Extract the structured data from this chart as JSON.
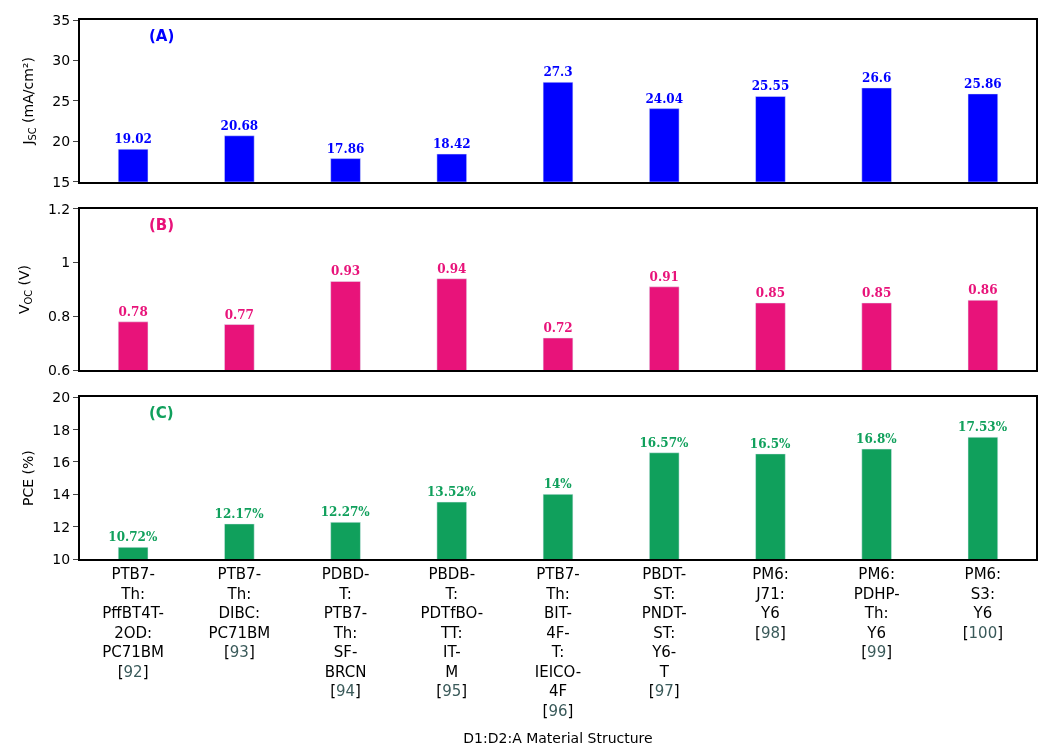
{
  "chart_data": [
    {
      "type": "bar",
      "series": [
        {
          "color": "#0000ff",
          "values": [
            19.02,
            20.68,
            17.86,
            18.42,
            27.3,
            24.04,
            25.55,
            26.6,
            25.86
          ]
        }
      ],
      "ylabel": "J$_{SC}$ (mA/cm²)",
      "ylim": [
        15,
        35
      ],
      "yticks": [
        15,
        20,
        25,
        30,
        35
      ],
      "data_labels": true,
      "tick_labels": "y",
      "annotations": [
        "(A)"
      ]
    },
    {
      "type": "bar",
      "series": [
        {
          "color": "#e8137a",
          "values": [
            0.78,
            0.77,
            0.93,
            0.94,
            0.72,
            0.91,
            0.85,
            0.85,
            0.86
          ]
        }
      ],
      "ylabel": "V$_{OC}$ (V)",
      "ylim": [
        0.6,
        1.2
      ],
      "yticks": [
        0.6,
        0.8,
        1,
        1.2
      ],
      "data_labels": true,
      "tick_labels": "y",
      "annotations": [
        "(B)"
      ]
    },
    {
      "type": "bar",
      "categories": [
        "PTB7-Th:PffBT4T-2OD:PC71BM [92]",
        "PTB7-Th:DIBC:PC71BM [93]",
        "PDBD-T:PTB7-Th:SF-BRCN [94]",
        "PBDB-T:PDTfBO-TT:IT-M [95]",
        "PTB7-Th:BIT-4F-T:IEICO-4F [96]",
        "PBDT-ST:PNDT-ST:Y6-T [97]",
        "PM6:J71:Y6 [98]",
        "PM6:PDHP-Th:Y6 [99]",
        "PM6:S3:Y6 [100]"
      ],
      "series": [
        {
          "color": "#10a05c",
          "values": [
            10.72,
            12.17,
            12.27,
            13.52,
            14,
            16.57,
            16.5,
            16.8,
            17.53
          ],
          "value_labels": [
            "10.72%",
            "12.17%",
            "12.27%",
            "13.52%",
            "14%",
            "16.57%",
            "16.5%",
            "16.8%",
            "17.53%"
          ]
        }
      ],
      "ylabel": "PCE (%)",
      "xlabel": "D1:D2:A Material Structure",
      "ylim": [
        10,
        20
      ],
      "yticks": [
        10,
        12,
        14,
        16,
        18,
        20
      ],
      "annotations": [
        "(C)"
      ]
    }
  ]
}
